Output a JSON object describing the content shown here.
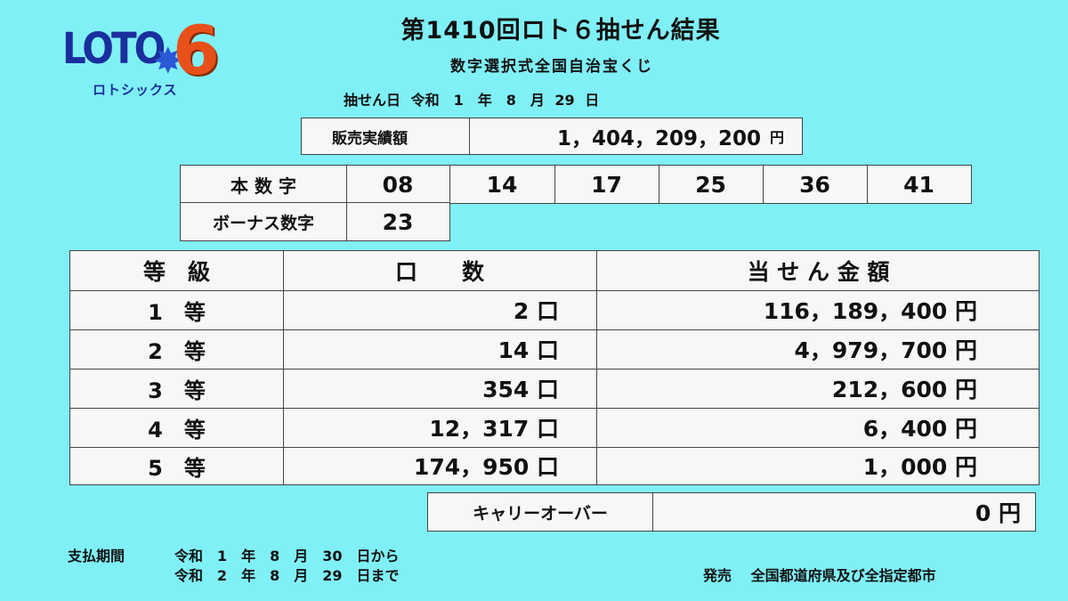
{
  "logo": {
    "text": "LOTO",
    "six": "6",
    "sub": "ロトシックス"
  },
  "header": {
    "title": "第1410回ロト６抽せん結果",
    "subtitle": "数字選択式全国自治宝くじ",
    "draw_date": "抽せん日 令和　1　年　8　月 29 日"
  },
  "sales": {
    "label": "販売実績額",
    "amount": "1，404，209，200",
    "unit": "円"
  },
  "main_numbers": {
    "label": "本 数 字",
    "values": [
      "08",
      "14",
      "17",
      "25",
      "36",
      "41"
    ]
  },
  "bonus_number": {
    "label": "ボーナス数字",
    "value": "23"
  },
  "prize_table": {
    "headers": [
      "等　級",
      "口　　数",
      "当 せ ん 金 額"
    ],
    "rows": [
      {
        "grade": "1　等",
        "winners": "2 口",
        "amount": "116，189，400 円"
      },
      {
        "grade": "2　等",
        "winners": "14 口",
        "amount": "4，979，700 円"
      },
      {
        "grade": "3　等",
        "winners": "354 口",
        "amount": "212，600 円"
      },
      {
        "grade": "4　等",
        "winners": "12，317 口",
        "amount": "6，400 円"
      },
      {
        "grade": "5　等",
        "winners": "174，950 口",
        "amount": "1，000 円"
      }
    ]
  },
  "carryover": {
    "label": "キャリーオーバー",
    "amount": "0 円"
  },
  "footer": {
    "payment_label": "支払期間",
    "payment_start": "令和　1　年　8　月　30　日から",
    "payment_end": "令和　2　年　8　月　29　日まで",
    "issuer": "発売　 全国都道府県及び全指定都市"
  }
}
